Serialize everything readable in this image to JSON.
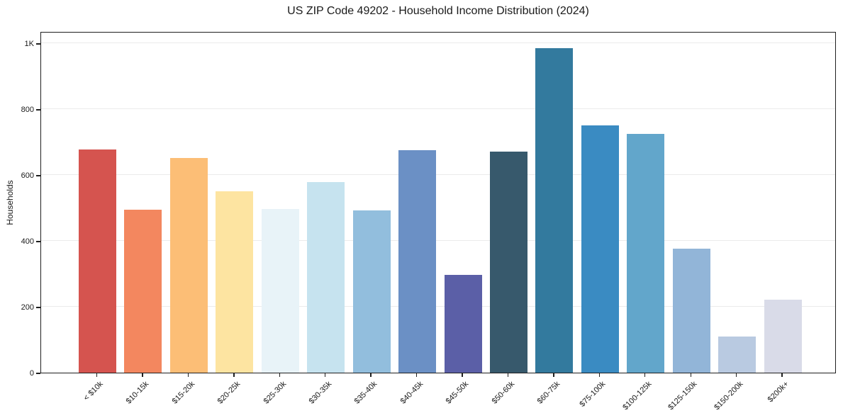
{
  "chart_data": {
    "type": "bar",
    "title": "US ZIP Code 49202 - Household Income Distribution (2024)",
    "xlabel": "",
    "ylabel": "Households",
    "categories": [
      "< $10k",
      "$10-15k",
      "$15-20k",
      "$20-25k",
      "$25-30k",
      "$30-35k",
      "$35-40k",
      "$40-45k",
      "$45-50k",
      "$50-60k",
      "$60-75k",
      "$75-100k",
      "$100-125k",
      "$125-150k",
      "$150-200k",
      "$200k+"
    ],
    "values": [
      678,
      494,
      651,
      551,
      498,
      579,
      492,
      676,
      297,
      672,
      985,
      751,
      726,
      376,
      110,
      221
    ],
    "bar_colors": [
      "#d5544f",
      "#f3875f",
      "#fcbe76",
      "#fde4a1",
      "#e8f3f8",
      "#c6e3ef",
      "#92bedd",
      "#6b90c5",
      "#5b5fa7",
      "#37596c",
      "#337a9e",
      "#3a8bc2",
      "#62a6cb",
      "#92b5d8",
      "#b9cae1",
      "#d9dbe8"
    ],
    "ylim": [
      0,
      1037
    ],
    "yticks": [
      {
        "v": 0,
        "label": "0"
      },
      {
        "v": 200,
        "label": "200"
      },
      {
        "v": 400,
        "label": "400"
      },
      {
        "v": 600,
        "label": "600"
      },
      {
        "v": 800,
        "label": "800"
      },
      {
        "v": 1000,
        "label": "1K"
      }
    ],
    "grid": "horizontal-y",
    "legend": "none",
    "xtick_rotation_deg": 45,
    "colors": {
      "background": "#ffffff",
      "grid": "#ebebeb",
      "spine": "#1f1f1f",
      "text": "#1a1a1a"
    }
  }
}
